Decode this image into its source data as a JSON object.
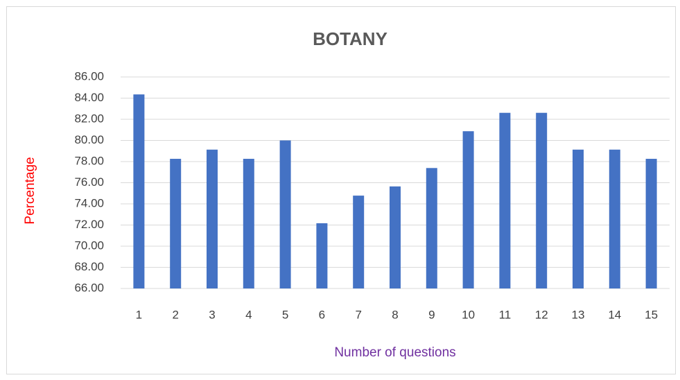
{
  "chart_data": {
    "type": "bar",
    "title": "BOTANY",
    "x_label": "Number of questions",
    "y_label": "Percentage",
    "categories": [
      "1",
      "2",
      "3",
      "4",
      "5",
      "6",
      "7",
      "8",
      "9",
      "10",
      "11",
      "12",
      "13",
      "14",
      "15"
    ],
    "values": [
      84.35,
      78.26,
      79.13,
      78.26,
      80.0,
      72.17,
      74.78,
      75.65,
      77.39,
      80.87,
      82.61,
      82.61,
      79.13,
      79.13,
      78.26
    ],
    "color": "#4472c4",
    "ylim": [
      66,
      86
    ],
    "yticks": [
      {
        "value": 66,
        "label": "66.00"
      },
      {
        "value": 68,
        "label": "68.00"
      },
      {
        "value": 70,
        "label": "70.00"
      },
      {
        "value": 72,
        "label": "72.00"
      },
      {
        "value": 74,
        "label": "74.00"
      },
      {
        "value": 76,
        "label": "76.00"
      },
      {
        "value": 78,
        "label": "78.00"
      },
      {
        "value": 80,
        "label": "80.00"
      },
      {
        "value": 82,
        "label": "82.00"
      },
      {
        "value": 84,
        "label": "84.00"
      },
      {
        "value": 86,
        "label": "86.00"
      }
    ],
    "grid": true
  }
}
